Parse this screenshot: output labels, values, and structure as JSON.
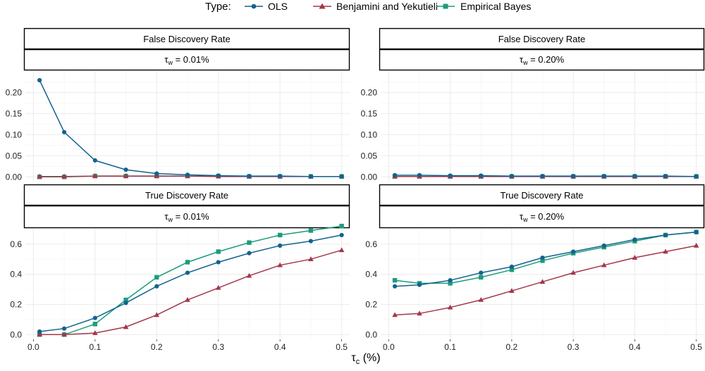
{
  "colors": {
    "ols": "#13628f",
    "by": "#a3374a",
    "eb": "#1c9c7b"
  },
  "legend": {
    "title": "Type:",
    "items": [
      "OLS",
      "Benjamini and Yekutieli",
      "Empirical Bayes"
    ]
  },
  "x_axis": {
    "ticks": [
      "0.0",
      "0.1",
      "0.2",
      "0.3",
      "0.4",
      "0.5"
    ],
    "label_symbol": "τ",
    "label_sub": "c",
    "label_suffix": " (%)"
  },
  "chart_data": [
    {
      "type": "line",
      "title": "False Discovery Rate",
      "subtitle": {
        "symbol": "τ",
        "sub": "w",
        "text": " = 0.01%"
      },
      "x": [
        0.01,
        0.05,
        0.1,
        0.15,
        0.2,
        0.25,
        0.3,
        0.35,
        0.4,
        0.45,
        0.5
      ],
      "xlim": [
        0,
        0.5
      ],
      "ylim": [
        0,
        0.25
      ],
      "yticks": [
        "0.00",
        "0.05",
        "0.10",
        "0.15",
        "0.20"
      ],
      "series": [
        {
          "name": "OLS",
          "values": [
            0.229,
            0.106,
            0.039,
            0.017,
            0.008,
            0.005,
            0.003,
            0.002,
            0.002,
            0.001,
            0.001
          ]
        },
        {
          "name": "Benjamini and Yekutieli",
          "values": [
            0.001,
            0.001,
            0.002,
            0.002,
            0.002,
            0.002,
            0.001,
            0.001,
            0.001,
            0.001,
            0.001
          ]
        },
        {
          "name": "Empirical Bayes",
          "values": [
            0.0,
            0.0,
            0.002,
            0.002,
            0.002,
            0.002,
            0.002,
            0.001,
            0.001,
            0.001,
            0.001
          ]
        }
      ]
    },
    {
      "type": "line",
      "title": "False Discovery Rate",
      "subtitle": {
        "symbol": "τ",
        "sub": "w",
        "text": " = 0.20%"
      },
      "x": [
        0.01,
        0.05,
        0.1,
        0.15,
        0.2,
        0.25,
        0.3,
        0.35,
        0.4,
        0.45,
        0.5
      ],
      "xlim": [
        0,
        0.5
      ],
      "ylim": [
        0,
        0.25
      ],
      "yticks": [
        "0.00",
        "0.05",
        "0.10",
        "0.15",
        "0.20"
      ],
      "series": [
        {
          "name": "OLS",
          "values": [
            0.004,
            0.004,
            0.003,
            0.003,
            0.002,
            0.002,
            0.002,
            0.002,
            0.002,
            0.002,
            0.001
          ]
        },
        {
          "name": "Benjamini and Yekutieli",
          "values": [
            0.001,
            0.001,
            0.001,
            0.001,
            0.001,
            0.001,
            0.001,
            0.001,
            0.001,
            0.001,
            0.001
          ]
        },
        {
          "name": "Empirical Bayes",
          "values": [
            0.001,
            0.001,
            0.001,
            0.001,
            0.001,
            0.001,
            0.001,
            0.001,
            0.001,
            0.001,
            0.001
          ]
        }
      ]
    },
    {
      "type": "line",
      "title": "True Discovery Rate",
      "subtitle": {
        "symbol": "τ",
        "sub": "w",
        "text": " = 0.01%"
      },
      "x": [
        0.01,
        0.05,
        0.1,
        0.15,
        0.2,
        0.25,
        0.3,
        0.35,
        0.4,
        0.45,
        0.5
      ],
      "xlim": [
        0,
        0.5
      ],
      "ylim": [
        0,
        0.7
      ],
      "yticks": [
        "0.0",
        "0.2",
        "0.4",
        "0.6"
      ],
      "series": [
        {
          "name": "OLS",
          "values": [
            0.02,
            0.04,
            0.11,
            0.21,
            0.32,
            0.41,
            0.48,
            0.54,
            0.59,
            0.62,
            0.66
          ]
        },
        {
          "name": "Benjamini and Yekutieli",
          "values": [
            0.0,
            0.0,
            0.01,
            0.05,
            0.13,
            0.23,
            0.31,
            0.39,
            0.46,
            0.5,
            0.56
          ]
        },
        {
          "name": "Empirical Bayes",
          "values": [
            0.0,
            0.0,
            0.07,
            0.23,
            0.38,
            0.48,
            0.55,
            0.61,
            0.66,
            0.69,
            0.72
          ]
        }
      ]
    },
    {
      "type": "line",
      "title": "True Discovery Rate",
      "subtitle": {
        "symbol": "τ",
        "sub": "w",
        "text": " = 0.20%"
      },
      "x": [
        0.01,
        0.05,
        0.1,
        0.15,
        0.2,
        0.25,
        0.3,
        0.35,
        0.4,
        0.45,
        0.5
      ],
      "xlim": [
        0,
        0.5
      ],
      "ylim": [
        0,
        0.7
      ],
      "yticks": [
        "0.0",
        "0.2",
        "0.4",
        "0.6"
      ],
      "series": [
        {
          "name": "OLS",
          "values": [
            0.32,
            0.33,
            0.36,
            0.41,
            0.45,
            0.51,
            0.55,
            0.59,
            0.63,
            0.66,
            0.68
          ]
        },
        {
          "name": "Benjamini and Yekutieli",
          "values": [
            0.13,
            0.14,
            0.18,
            0.23,
            0.29,
            0.35,
            0.41,
            0.46,
            0.51,
            0.55,
            0.59
          ]
        },
        {
          "name": "Empirical Bayes",
          "values": [
            0.36,
            0.34,
            0.34,
            0.38,
            0.43,
            0.49,
            0.54,
            0.58,
            0.62,
            0.66,
            0.68
          ]
        }
      ]
    }
  ]
}
